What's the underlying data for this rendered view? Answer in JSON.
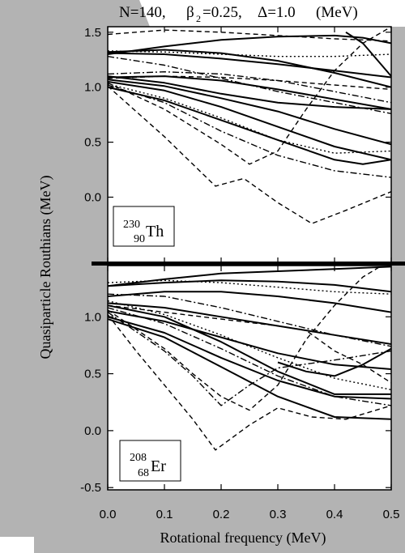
{
  "header": {
    "n": "N=140,",
    "beta_sym": "β",
    "beta_sub": "2",
    "beta_val": "=0.25,",
    "delta": "Δ=1.0",
    "unit": "(MeV)"
  },
  "xaxis": {
    "label": "Rotational frequency (MeV)",
    "range": [
      0.0,
      0.5
    ]
  },
  "yaxis": {
    "label": "Quasiparticle Routhians (MeV)"
  },
  "chart_data": [
    {
      "type": "line",
      "panel": "top",
      "nucleus": {
        "mass": "230",
        "z": "90",
        "symbol": "Th"
      },
      "xlim": [
        0.0,
        0.5
      ],
      "ylim": [
        -0.6,
        1.55
      ],
      "xticks": [
        "0.0",
        "0.1",
        "0.2",
        "0.3",
        "0.4",
        "0.5"
      ],
      "yticks": [
        "0.0",
        "0.5",
        "1.0",
        "1.5"
      ],
      "series": [
        {
          "style": "solid",
          "x": [
            0,
            0.1,
            0.2,
            0.3,
            0.4,
            0.45,
            0.5
          ],
          "y": [
            1.3,
            1.37,
            1.43,
            1.46,
            1.47,
            1.45,
            1.4
          ]
        },
        {
          "style": "solid",
          "x": [
            0,
            0.1,
            0.2,
            0.3,
            0.4,
            0.5
          ],
          "y": [
            1.31,
            1.3,
            1.26,
            1.21,
            1.15,
            1.09
          ]
        },
        {
          "style": "solid",
          "x": [
            0,
            0.1,
            0.2,
            0.3,
            0.4,
            0.5
          ],
          "y": [
            1.09,
            1.1,
            1.06,
            0.98,
            0.89,
            0.8
          ]
        },
        {
          "style": "solid",
          "x": [
            0,
            0.1,
            0.2,
            0.3,
            0.4,
            0.5
          ],
          "y": [
            1.07,
            1.01,
            0.9,
            0.78,
            0.62,
            0.48
          ]
        },
        {
          "style": "solid",
          "x": [
            0,
            0.1,
            0.2,
            0.3,
            0.4,
            0.5
          ],
          "y": [
            1.05,
            0.97,
            0.82,
            0.64,
            0.46,
            0.34
          ]
        },
        {
          "style": "solid",
          "x": [
            0,
            0.1,
            0.2,
            0.3,
            0.4,
            0.45,
            0.5
          ],
          "y": [
            1.0,
            0.88,
            0.7,
            0.52,
            0.34,
            0.3,
            0.34
          ]
        },
        {
          "style": "solid",
          "x": [
            0,
            0.1,
            0.2,
            0.3,
            0.4,
            0.5
          ],
          "y": [
            1.1,
            1.04,
            0.94,
            0.86,
            0.82,
            0.8
          ]
        },
        {
          "style": "solid",
          "x": [
            0,
            0.1,
            0.2,
            0.3,
            0.4,
            0.5
          ],
          "y": [
            1.32,
            1.34,
            1.31,
            1.24,
            1.13,
            1.0
          ]
        },
        {
          "style": "solid",
          "x": [
            0.42,
            0.45,
            0.5
          ],
          "y": [
            1.5,
            1.4,
            1.1
          ]
        },
        {
          "style": "dashed",
          "x": [
            0,
            0.05,
            0.1,
            0.15,
            0.19,
            0.24,
            0.3,
            0.36,
            0.42,
            0.5
          ],
          "y": [
            1.01,
            0.78,
            0.55,
            0.3,
            0.1,
            0.17,
            -0.05,
            -0.24,
            -0.12,
            0.05
          ]
        },
        {
          "style": "dashed",
          "x": [
            0,
            0.1,
            0.2,
            0.25,
            0.3,
            0.35,
            0.4,
            0.45,
            0.5
          ],
          "y": [
            1.04,
            0.8,
            0.48,
            0.3,
            0.42,
            0.8,
            1.15,
            1.4,
            1.55
          ]
        },
        {
          "style": "dashed",
          "x": [
            0,
            0.1,
            0.2,
            0.3,
            0.4,
            0.5
          ],
          "y": [
            1.48,
            1.52,
            1.5,
            1.47,
            1.44,
            1.42
          ]
        },
        {
          "style": "dashed",
          "x": [
            0,
            0.1,
            0.2,
            0.3,
            0.4,
            0.5
          ],
          "y": [
            1.08,
            1.1,
            1.09,
            1.06,
            1.02,
            0.98
          ]
        },
        {
          "style": "dashdot",
          "x": [
            0,
            0.1,
            0.2,
            0.3,
            0.4,
            0.5
          ],
          "y": [
            1.02,
            0.86,
            0.6,
            0.38,
            0.24,
            0.18
          ]
        },
        {
          "style": "dashdot",
          "x": [
            0,
            0.1,
            0.2,
            0.3,
            0.4,
            0.5
          ],
          "y": [
            1.12,
            1.14,
            1.12,
            1.06,
            0.96,
            0.86
          ]
        },
        {
          "style": "dashdot",
          "x": [
            0,
            0.1,
            0.2,
            0.3,
            0.4,
            0.5
          ],
          "y": [
            1.28,
            1.2,
            1.08,
            0.96,
            0.86,
            0.76
          ]
        },
        {
          "style": "dotted",
          "x": [
            0,
            0.1,
            0.2,
            0.3,
            0.4,
            0.5
          ],
          "y": [
            1.03,
            0.9,
            0.72,
            0.52,
            0.4,
            0.42
          ]
        },
        {
          "style": "dotted",
          "x": [
            0,
            0.1,
            0.2,
            0.3,
            0.4,
            0.5
          ],
          "y": [
            1.33,
            1.32,
            1.3,
            1.28,
            1.28,
            1.3
          ]
        }
      ]
    },
    {
      "type": "line",
      "panel": "bottom",
      "nucleus": {
        "mass": "208",
        "z": "68",
        "symbol": "Er"
      },
      "xlim": [
        0.0,
        0.5
      ],
      "ylim": [
        -0.52,
        1.45
      ],
      "xticks": [
        "0.0",
        "0.1",
        "0.2",
        "0.3",
        "0.4",
        "0.5"
      ],
      "yticks": [
        "-0.5",
        "0.0",
        "0.5",
        "1.0"
      ],
      "series": [
        {
          "style": "solid",
          "x": [
            0,
            0.1,
            0.2,
            0.3,
            0.4,
            0.5
          ],
          "y": [
            1.27,
            1.3,
            1.32,
            1.31,
            1.28,
            1.22
          ]
        },
        {
          "style": "solid",
          "x": [
            0,
            0.1,
            0.2,
            0.3,
            0.4,
            0.5
          ],
          "y": [
            1.18,
            1.22,
            1.22,
            1.18,
            1.12,
            1.04
          ]
        },
        {
          "style": "solid",
          "x": [
            0,
            0.1,
            0.2,
            0.3,
            0.4,
            0.5
          ],
          "y": [
            1.12,
            1.08,
            1.0,
            0.92,
            0.84,
            0.76
          ]
        },
        {
          "style": "solid",
          "x": [
            0,
            0.1,
            0.2,
            0.3,
            0.4,
            0.5
          ],
          "y": [
            1.05,
            0.96,
            0.82,
            0.68,
            0.58,
            0.54
          ]
        },
        {
          "style": "solid",
          "x": [
            0,
            0.1,
            0.2,
            0.3,
            0.4,
            0.5
          ],
          "y": [
            1.0,
            0.86,
            0.64,
            0.44,
            0.3,
            0.28
          ]
        },
        {
          "style": "solid",
          "x": [
            0,
            0.1,
            0.2,
            0.3,
            0.4,
            0.5
          ],
          "y": [
            1.1,
            1.0,
            0.78,
            0.52,
            0.32,
            0.32
          ]
        },
        {
          "style": "solid",
          "x": [
            0,
            0.1,
            0.2,
            0.3,
            0.4,
            0.5
          ],
          "y": [
            0.98,
            0.82,
            0.56,
            0.3,
            0.12,
            0.1
          ]
        },
        {
          "style": "solid",
          "x": [
            0,
            0.1,
            0.2,
            0.3,
            0.4,
            0.5
          ],
          "y": [
            1.27,
            1.33,
            1.38,
            1.4,
            1.42,
            1.44
          ]
        },
        {
          "style": "solid",
          "x": [
            0.3,
            0.35,
            0.4,
            0.45,
            0.5
          ],
          "y": [
            0.6,
            0.52,
            0.48,
            0.58,
            0.72
          ]
        },
        {
          "style": "dashed",
          "x": [
            0,
            0.05,
            0.1,
            0.15,
            0.19,
            0.25,
            0.3,
            0.36,
            0.42,
            0.5
          ],
          "y": [
            1.02,
            0.7,
            0.4,
            0.1,
            -0.17,
            0.05,
            0.2,
            0.12,
            0.1,
            0.22
          ]
        },
        {
          "style": "dashed",
          "x": [
            0,
            0.1,
            0.15,
            0.2,
            0.25,
            0.3,
            0.35,
            0.4,
            0.45,
            0.5
          ],
          "y": [
            1.06,
            0.72,
            0.5,
            0.3,
            0.18,
            0.4,
            0.8,
            1.1,
            1.35,
            1.5
          ]
        },
        {
          "style": "dashed",
          "x": [
            0,
            0.1,
            0.2,
            0.3,
            0.35,
            0.4,
            0.45,
            0.5
          ],
          "y": [
            1.1,
            1.04,
            0.98,
            0.92,
            0.88,
            0.7,
            0.58,
            0.42
          ]
        },
        {
          "style": "dashdot",
          "x": [
            0,
            0.1,
            0.2,
            0.3,
            0.4,
            0.5
          ],
          "y": [
            1.08,
            0.94,
            0.72,
            0.48,
            0.3,
            0.22
          ]
        },
        {
          "style": "dashdot",
          "x": [
            0,
            0.1,
            0.2,
            0.3,
            0.4,
            0.5
          ],
          "y": [
            1.2,
            1.18,
            1.08,
            0.96,
            0.84,
            0.74
          ]
        },
        {
          "style": "dashdot",
          "x": [
            0,
            0.1,
            0.15,
            0.2,
            0.25,
            0.3,
            0.4,
            0.5
          ],
          "y": [
            1.04,
            0.7,
            0.48,
            0.22,
            0.4,
            0.55,
            0.62,
            0.7
          ]
        },
        {
          "style": "dotted",
          "x": [
            0,
            0.1,
            0.2,
            0.3,
            0.4,
            0.5
          ],
          "y": [
            1.3,
            1.32,
            1.3,
            1.26,
            1.22,
            1.2
          ]
        },
        {
          "style": "dotted",
          "x": [
            0,
            0.1,
            0.2,
            0.3,
            0.4,
            0.5
          ],
          "y": [
            1.14,
            1.02,
            0.84,
            0.64,
            0.46,
            0.36
          ]
        }
      ]
    }
  ]
}
